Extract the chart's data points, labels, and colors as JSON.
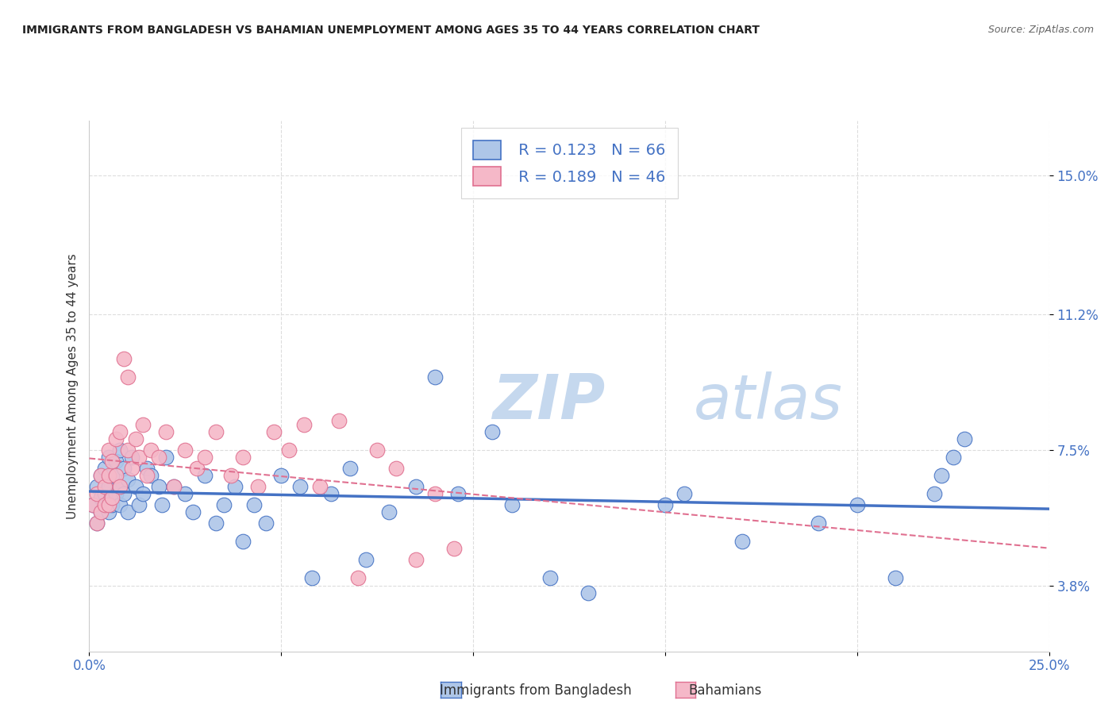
{
  "title": "IMMIGRANTS FROM BANGLADESH VS BAHAMIAN UNEMPLOYMENT AMONG AGES 35 TO 44 YEARS CORRELATION CHART",
  "source": "Source: ZipAtlas.com",
  "xlabel_blue": "Immigrants from Bangladesh",
  "xlabel_pink": "Bahamians",
  "ylabel": "Unemployment Among Ages 35 to 44 years",
  "xlim": [
    0.0,
    0.25
  ],
  "ylim": [
    0.02,
    0.165
  ],
  "ytick_values": [
    0.038,
    0.075,
    0.112,
    0.15
  ],
  "ytick_labels": [
    "3.8%",
    "7.5%",
    "11.2%",
    "15.0%"
  ],
  "blue_color": "#aec6e8",
  "pink_color": "#f5b8c8",
  "blue_line_color": "#4472c4",
  "pink_line_color": "#e07090",
  "text_color": "#4472c4",
  "legend_R_blue": "R = 0.123",
  "legend_N_blue": "N = 66",
  "legend_R_pink": "R = 0.189",
  "legend_N_pink": "N = 46",
  "watermark_ZIP": "ZIP",
  "watermark_atlas": "atlas",
  "watermark_color": "#c5d8ee",
  "blue_x": [
    0.001,
    0.002,
    0.002,
    0.003,
    0.003,
    0.003,
    0.004,
    0.004,
    0.004,
    0.005,
    0.005,
    0.005,
    0.006,
    0.006,
    0.007,
    0.007,
    0.008,
    0.008,
    0.008,
    0.009,
    0.009,
    0.01,
    0.01,
    0.011,
    0.012,
    0.013,
    0.014,
    0.015,
    0.016,
    0.018,
    0.019,
    0.02,
    0.022,
    0.025,
    0.027,
    0.03,
    0.033,
    0.035,
    0.038,
    0.04,
    0.043,
    0.046,
    0.05,
    0.055,
    0.058,
    0.063,
    0.068,
    0.072,
    0.078,
    0.085,
    0.09,
    0.096,
    0.105,
    0.11,
    0.12,
    0.13,
    0.15,
    0.155,
    0.17,
    0.19,
    0.2,
    0.21,
    0.22,
    0.222,
    0.225,
    0.228
  ],
  "blue_y": [
    0.06,
    0.055,
    0.065,
    0.058,
    0.062,
    0.068,
    0.06,
    0.063,
    0.07,
    0.058,
    0.065,
    0.073,
    0.06,
    0.068,
    0.063,
    0.072,
    0.065,
    0.06,
    0.075,
    0.063,
    0.07,
    0.058,
    0.067,
    0.073,
    0.065,
    0.06,
    0.063,
    0.07,
    0.068,
    0.065,
    0.06,
    0.073,
    0.065,
    0.063,
    0.058,
    0.068,
    0.055,
    0.06,
    0.065,
    0.05,
    0.06,
    0.055,
    0.068,
    0.065,
    0.04,
    0.063,
    0.07,
    0.045,
    0.058,
    0.065,
    0.095,
    0.063,
    0.08,
    0.06,
    0.04,
    0.036,
    0.06,
    0.063,
    0.05,
    0.055,
    0.06,
    0.04,
    0.063,
    0.068,
    0.073,
    0.078
  ],
  "pink_x": [
    0.001,
    0.002,
    0.002,
    0.003,
    0.003,
    0.004,
    0.004,
    0.005,
    0.005,
    0.005,
    0.006,
    0.006,
    0.007,
    0.007,
    0.008,
    0.008,
    0.009,
    0.01,
    0.01,
    0.011,
    0.012,
    0.013,
    0.014,
    0.015,
    0.016,
    0.018,
    0.02,
    0.022,
    0.025,
    0.028,
    0.03,
    0.033,
    0.037,
    0.04,
    0.044,
    0.048,
    0.052,
    0.056,
    0.06,
    0.065,
    0.07,
    0.075,
    0.08,
    0.085,
    0.09,
    0.095
  ],
  "pink_y": [
    0.06,
    0.055,
    0.063,
    0.058,
    0.068,
    0.06,
    0.065,
    0.06,
    0.068,
    0.075,
    0.062,
    0.072,
    0.068,
    0.078,
    0.065,
    0.08,
    0.1,
    0.075,
    0.095,
    0.07,
    0.078,
    0.073,
    0.082,
    0.068,
    0.075,
    0.073,
    0.08,
    0.065,
    0.075,
    0.07,
    0.073,
    0.08,
    0.068,
    0.073,
    0.065,
    0.08,
    0.075,
    0.082,
    0.065,
    0.083,
    0.04,
    0.075,
    0.07,
    0.045,
    0.063,
    0.048
  ]
}
